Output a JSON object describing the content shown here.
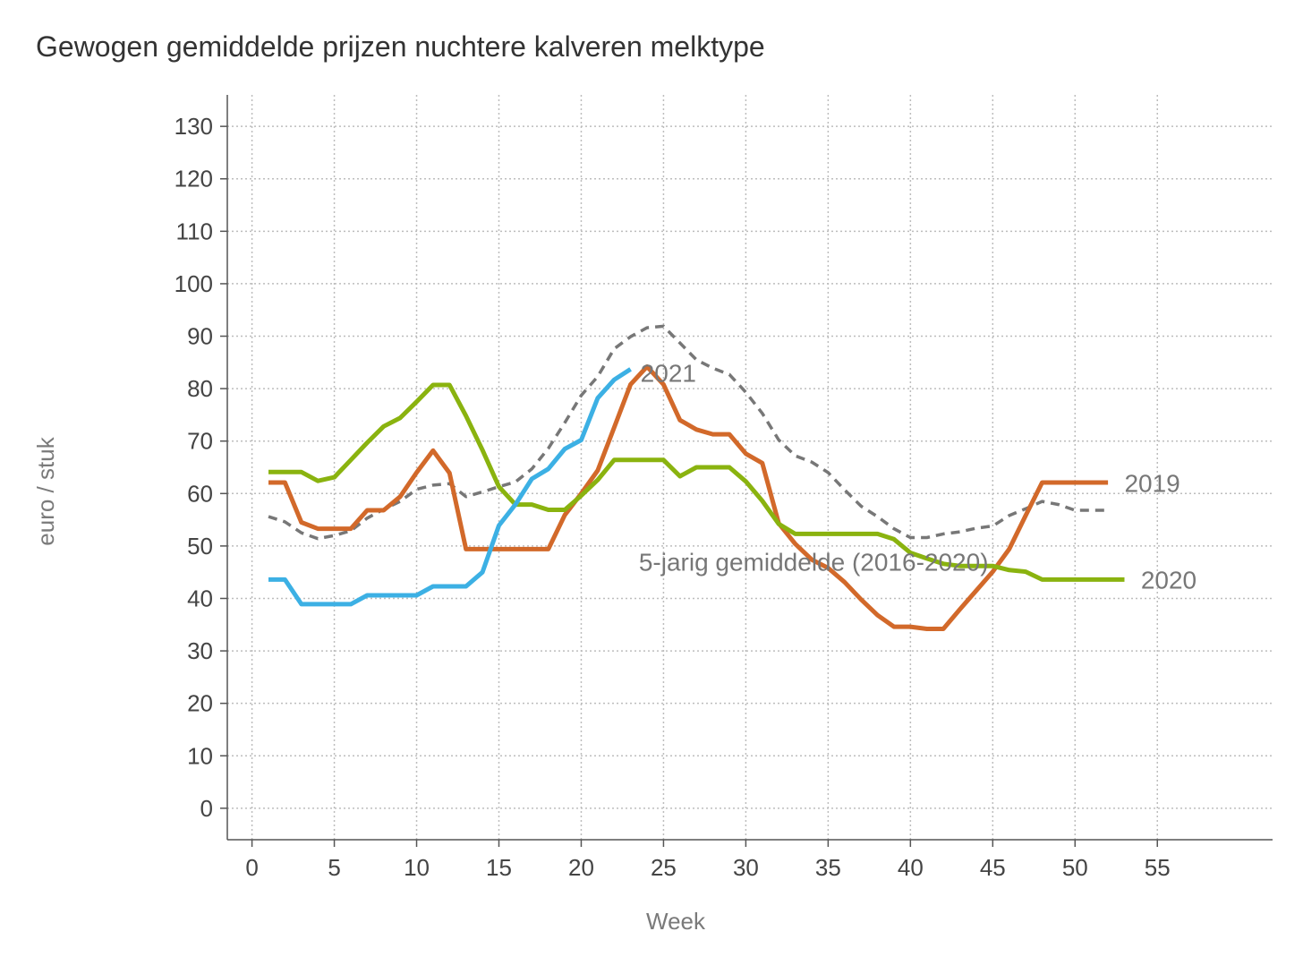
{
  "chart_data": {
    "type": "line",
    "title": "Gewogen gemiddelde prijzen nuchtere kalveren melktype",
    "xlabel": "Week",
    "ylabel": "euro / stuk",
    "xlim": [
      -1.5,
      62
    ],
    "ylim": [
      -6,
      136
    ],
    "xticks": [
      0,
      5,
      10,
      15,
      20,
      25,
      30,
      35,
      40,
      45,
      50,
      55
    ],
    "yticks": [
      0,
      10,
      20,
      30,
      40,
      50,
      60,
      70,
      80,
      90,
      100,
      110,
      120,
      130
    ],
    "grid": true,
    "series": [
      {
        "name": "5-jarig gemiddelde (2016-2020)",
        "color": "#777777",
        "dash": true,
        "label_anchor": [
          23.5,
          47
        ],
        "label_color": "#777777",
        "x": [
          1,
          2,
          3,
          4,
          5,
          6,
          7,
          8,
          9,
          10,
          11,
          12,
          13,
          14,
          15,
          16,
          17,
          18,
          19,
          20,
          21,
          22,
          23,
          24,
          25,
          26,
          27,
          28,
          29,
          30,
          31,
          32,
          33,
          34,
          35,
          36,
          37,
          38,
          39,
          40,
          41,
          42,
          43,
          44,
          45,
          46,
          47,
          48,
          49,
          50,
          51,
          52
        ],
        "y": [
          55.6,
          54.6,
          52.5,
          51.4,
          52,
          52.9,
          55.3,
          57,
          58.5,
          60.8,
          61.6,
          61.9,
          59.4,
          60.3,
          61.3,
          62.2,
          64.7,
          68.6,
          73.5,
          78.7,
          82.3,
          87.6,
          89.9,
          91.6,
          91.9,
          88.7,
          85.5,
          83.9,
          82.7,
          79.3,
          75.3,
          70.2,
          67.2,
          66,
          64,
          60.7,
          57.6,
          55.6,
          53.3,
          51.6,
          51.6,
          52.3,
          52.7,
          53.4,
          53.8,
          55.8,
          57.1,
          58.5,
          57.9,
          56.8,
          56.8,
          56.8
        ]
      },
      {
        "name": "2019",
        "color": "#D2692A",
        "dash": false,
        "label_anchor": [
          53,
          62
        ],
        "label_color": "#777777",
        "x": [
          1,
          2,
          3,
          4,
          5,
          6,
          7,
          8,
          9,
          10,
          11,
          12,
          13,
          14,
          15,
          16,
          17,
          18,
          19,
          20,
          21,
          22,
          23,
          24,
          25,
          26,
          27,
          28,
          29,
          30,
          31,
          32,
          33,
          34,
          35,
          36,
          37,
          38,
          39,
          40,
          41,
          42,
          43,
          44,
          45,
          46,
          47,
          48,
          49,
          50,
          51,
          52
        ],
        "y": [
          62.1,
          62.1,
          54.5,
          53.3,
          53.3,
          53.3,
          56.8,
          56.8,
          59.4,
          64,
          68.2,
          63.9,
          49.4,
          49.4,
          49.4,
          49.4,
          49.4,
          49.4,
          55.9,
          60,
          64.4,
          72.6,
          80.8,
          84.2,
          80.8,
          74,
          72.2,
          71.3,
          71.3,
          67.6,
          65.8,
          54.3,
          50.4,
          47.4,
          45.8,
          43.1,
          39.8,
          36.8,
          34.6,
          34.6,
          34.2,
          34.2,
          37.9,
          41.5,
          45.1,
          49.4,
          55.8,
          62.1,
          62.1,
          62.1,
          62.1,
          62.1
        ]
      },
      {
        "name": "2020",
        "color": "#8AB30F",
        "dash": false,
        "label_anchor": [
          54,
          43.6
        ],
        "label_color": "#777777",
        "x": [
          1,
          2,
          3,
          4,
          5,
          6,
          7,
          8,
          9,
          10,
          11,
          12,
          13,
          14,
          15,
          16,
          17,
          18,
          19,
          20,
          21,
          22,
          23,
          24,
          25,
          26,
          27,
          28,
          29,
          30,
          31,
          32,
          33,
          34,
          35,
          36,
          37,
          38,
          39,
          40,
          41,
          42,
          43,
          44,
          45,
          46,
          47,
          48,
          49,
          50,
          51,
          52,
          53
        ],
        "y": [
          64.1,
          64.1,
          64.1,
          62.4,
          63.1,
          66.4,
          69.7,
          72.8,
          74.4,
          77.5,
          80.7,
          80.7,
          74.8,
          68.3,
          61.3,
          57.9,
          57.9,
          56.9,
          56.9,
          59.6,
          62.6,
          66.4,
          66.4,
          66.4,
          66.4,
          63.3,
          65,
          65,
          65,
          62.3,
          58.6,
          54.2,
          52.3,
          52.3,
          52.3,
          52.3,
          52.3,
          52.3,
          51.3,
          48.7,
          47.6,
          46.6,
          46.2,
          46.2,
          46.2,
          45.4,
          45.1,
          43.6,
          43.6,
          43.6,
          43.6,
          43.6,
          43.6
        ]
      },
      {
        "name": "2021",
        "color": "#3CB0E4",
        "dash": false,
        "label_anchor": [
          23.6,
          83
        ],
        "label_color": "#777777",
        "x": [
          1,
          2,
          3,
          4,
          5,
          6,
          7,
          8,
          9,
          10,
          11,
          12,
          13,
          14,
          15,
          16,
          17,
          18,
          19,
          20,
          21,
          22,
          23
        ],
        "y": [
          43.6,
          43.6,
          38.9,
          38.9,
          38.9,
          38.9,
          40.6,
          40.6,
          40.6,
          40.6,
          42.3,
          42.3,
          42.3,
          45,
          53.9,
          57.9,
          62.8,
          64.7,
          68.5,
          70.2,
          78.2,
          81.7,
          83.7
        ]
      }
    ]
  }
}
